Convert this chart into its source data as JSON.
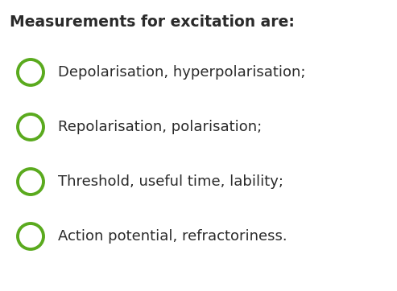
{
  "title": "Measurements for excitation are:",
  "title_fontsize": 13.5,
  "title_fontweight": "bold",
  "title_color": "#2a2a2a",
  "items": [
    "Depolarisation, hyperpolarisation;",
    "Repolarisation, polarisation;",
    "Threshold, useful time, lability;",
    "Action potential, refractoriness."
  ],
  "item_fontsize": 13.0,
  "item_color": "#2a2a2a",
  "circle_color": "#5aaa1e",
  "circle_linewidth": 2.8,
  "background_color": "#ffffff",
  "fig_width": 4.93,
  "fig_height": 3.62,
  "dpi": 100
}
